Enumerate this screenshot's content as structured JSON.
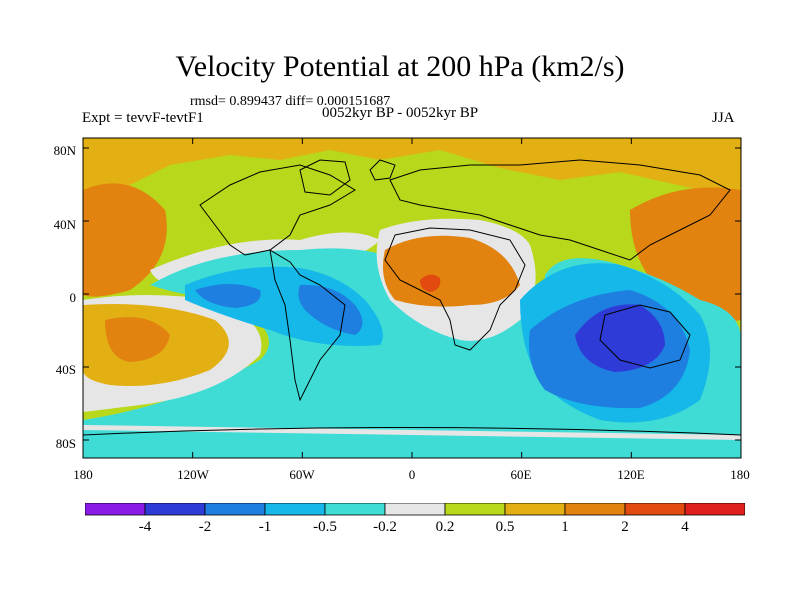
{
  "title": "Velocity Potential at 200 hPa (km2/s)",
  "stats": "rmsd= 0.899437 diff= 0.000151687",
  "left_label": "Expt = tevvF-tevtF1",
  "center_label": "0052kyr BP - 0052kyr BP",
  "right_label": "JJA",
  "lat_labels": [
    "80N",
    "40N",
    "0",
    "40S",
    "80S"
  ],
  "lon_labels": [
    "180",
    "120W",
    "60W",
    "0",
    "60E",
    "120E",
    "180"
  ],
  "colorbar": {
    "colors": [
      "#8a1ae6",
      "#2f3bd6",
      "#1e7fe0",
      "#15b8e8",
      "#3fdcd6",
      "#e6e6e6",
      "#b8d81c",
      "#e2b012",
      "#e2820f",
      "#e24a10",
      "#e01e1e"
    ],
    "labels": [
      "-4",
      "-2",
      "-1",
      "-0.5",
      "-0.2",
      "0.2",
      "0.5",
      "1",
      "2",
      "4"
    ]
  },
  "map_colors": {
    "ocean_bg": "#b8d81c",
    "cyan": "#3fdcd6",
    "lightblue": "#15b8e8",
    "blue": "#1e7fe0",
    "darkblue": "#2f3bd6",
    "gray": "#e6e6e6",
    "gold": "#e2b012",
    "orange": "#e2820f",
    "red": "#e24a10"
  }
}
